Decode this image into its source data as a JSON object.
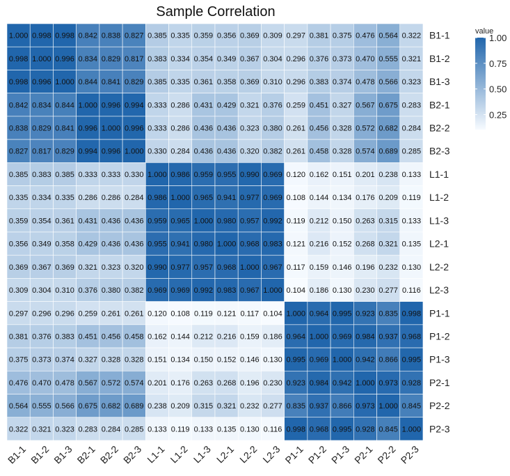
{
  "chart_data": {
    "type": "heatmap",
    "title": "Sample Correlation",
    "row_labels": [
      "B1-1",
      "B1-2",
      "B1-3",
      "B2-1",
      "B2-2",
      "B2-3",
      "L1-1",
      "L1-2",
      "L1-3",
      "L2-1",
      "L2-2",
      "L2-3",
      "P1-1",
      "P1-2",
      "P1-3",
      "P2-1",
      "P2-2",
      "P2-3"
    ],
    "col_labels": [
      "B1-1",
      "B1-2",
      "B1-3",
      "B2-1",
      "B2-2",
      "B2-3",
      "L1-1",
      "L1-2",
      "L1-3",
      "L2-1",
      "L2-2",
      "L2-3",
      "P1-1",
      "P1-2",
      "P1-3",
      "P2-1",
      "P2-2",
      "P2-3"
    ],
    "values": [
      [
        "1.000",
        "0.998",
        "0.998",
        "0.842",
        "0.838",
        "0.827",
        "0.385",
        "0.335",
        "0.359",
        "0.356",
        "0.369",
        "0.309",
        "0.297",
        "0.381",
        "0.375",
        "0.476",
        "0.564",
        "0.322"
      ],
      [
        "0.998",
        "1.000",
        "0.996",
        "0.834",
        "0.829",
        "0.817",
        "0.383",
        "0.334",
        "0.354",
        "0.349",
        "0.367",
        "0.304",
        "0.296",
        "0.376",
        "0.373",
        "0.470",
        "0.555",
        "0.321"
      ],
      [
        "0.998",
        "0.996",
        "1.000",
        "0.844",
        "0.841",
        "0.829",
        "0.385",
        "0.335",
        "0.361",
        "0.358",
        "0.369",
        "0.310",
        "0.296",
        "0.383",
        "0.374",
        "0.478",
        "0.566",
        "0.323"
      ],
      [
        "0.842",
        "0.834",
        "0.844",
        "1.000",
        "0.996",
        "0.994",
        "0.333",
        "0.286",
        "0.431",
        "0.429",
        "0.321",
        "0.376",
        "0.259",
        "0.451",
        "0.327",
        "0.567",
        "0.675",
        "0.283"
      ],
      [
        "0.838",
        "0.829",
        "0.841",
        "0.996",
        "1.000",
        "0.996",
        "0.333",
        "0.286",
        "0.436",
        "0.436",
        "0.323",
        "0.380",
        "0.261",
        "0.456",
        "0.328",
        "0.572",
        "0.682",
        "0.284"
      ],
      [
        "0.827",
        "0.817",
        "0.829",
        "0.994",
        "0.996",
        "1.000",
        "0.330",
        "0.284",
        "0.436",
        "0.436",
        "0.320",
        "0.382",
        "0.261",
        "0.458",
        "0.328",
        "0.574",
        "0.689",
        "0.285"
      ],
      [
        "0.385",
        "0.383",
        "0.385",
        "0.333",
        "0.333",
        "0.330",
        "1.000",
        "0.986",
        "0.959",
        "0.955",
        "0.990",
        "0.969",
        "0.120",
        "0.162",
        "0.151",
        "0.201",
        "0.238",
        "0.133"
      ],
      [
        "0.335",
        "0.334",
        "0.335",
        "0.286",
        "0.286",
        "0.284",
        "0.986",
        "1.000",
        "0.965",
        "0.941",
        "0.977",
        "0.969",
        "0.108",
        "0.144",
        "0.134",
        "0.176",
        "0.209",
        "0.119"
      ],
      [
        "0.359",
        "0.354",
        "0.361",
        "0.431",
        "0.436",
        "0.436",
        "0.959",
        "0.965",
        "1.000",
        "0.980",
        "0.957",
        "0.992",
        "0.119",
        "0.212",
        "0.150",
        "0.263",
        "0.315",
        "0.133"
      ],
      [
        "0.356",
        "0.349",
        "0.358",
        "0.429",
        "0.436",
        "0.436",
        "0.955",
        "0.941",
        "0.980",
        "1.000",
        "0.968",
        "0.983",
        "0.121",
        "0.216",
        "0.152",
        "0.268",
        "0.321",
        "0.135"
      ],
      [
        "0.369",
        "0.367",
        "0.369",
        "0.321",
        "0.323",
        "0.320",
        "0.990",
        "0.977",
        "0.957",
        "0.968",
        "1.000",
        "0.967",
        "0.117",
        "0.159",
        "0.146",
        "0.196",
        "0.232",
        "0.130"
      ],
      [
        "0.309",
        "0.304",
        "0.310",
        "0.376",
        "0.380",
        "0.382",
        "0.969",
        "0.969",
        "0.992",
        "0.983",
        "0.967",
        "1.000",
        "0.104",
        "0.186",
        "0.130",
        "0.230",
        "0.277",
        "0.116"
      ],
      [
        "0.297",
        "0.296",
        "0.296",
        "0.259",
        "0.261",
        "0.261",
        "0.120",
        "0.108",
        "0.119",
        "0.121",
        "0.117",
        "0.104",
        "1.000",
        "0.964",
        "0.995",
        "0.923",
        "0.835",
        "0.998"
      ],
      [
        "0.381",
        "0.376",
        "0.383",
        "0.451",
        "0.456",
        "0.458",
        "0.162",
        "0.144",
        "0.212",
        "0.216",
        "0.159",
        "0.186",
        "0.964",
        "1.000",
        "0.969",
        "0.984",
        "0.937",
        "0.968"
      ],
      [
        "0.375",
        "0.373",
        "0.374",
        "0.327",
        "0.328",
        "0.328",
        "0.151",
        "0.134",
        "0.150",
        "0.152",
        "0.146",
        "0.130",
        "0.995",
        "0.969",
        "1.000",
        "0.942",
        "0.866",
        "0.995"
      ],
      [
        "0.476",
        "0.470",
        "0.478",
        "0.567",
        "0.572",
        "0.574",
        "0.201",
        "0.176",
        "0.263",
        "0.268",
        "0.196",
        "0.230",
        "0.923",
        "0.984",
        "0.942",
        "1.000",
        "0.973",
        "0.928"
      ],
      [
        "0.564",
        "0.555",
        "0.566",
        "0.675",
        "0.682",
        "0.689",
        "0.238",
        "0.209",
        "0.315",
        "0.321",
        "0.232",
        "0.277",
        "0.835",
        "0.937",
        "0.866",
        "0.973",
        "1.000",
        "0.845"
      ],
      [
        "0.322",
        "0.321",
        "0.323",
        "0.283",
        "0.284",
        "0.285",
        "0.133",
        "0.119",
        "0.133",
        "0.135",
        "0.130",
        "0.116",
        "0.998",
        "0.968",
        "0.995",
        "0.928",
        "0.845",
        "1.000"
      ]
    ],
    "color_range": [
      0.104,
      1.0
    ],
    "color_low": "#f7fbff",
    "color_high": "#2166ac",
    "legend": {
      "title": "value",
      "ticks": [
        {
          "value": 1.0,
          "label": "1.00"
        },
        {
          "value": 0.75,
          "label": "0.75"
        },
        {
          "value": 0.5,
          "label": "0.50"
        },
        {
          "value": 0.25,
          "label": "0.25"
        }
      ],
      "placement": "top-right"
    }
  }
}
